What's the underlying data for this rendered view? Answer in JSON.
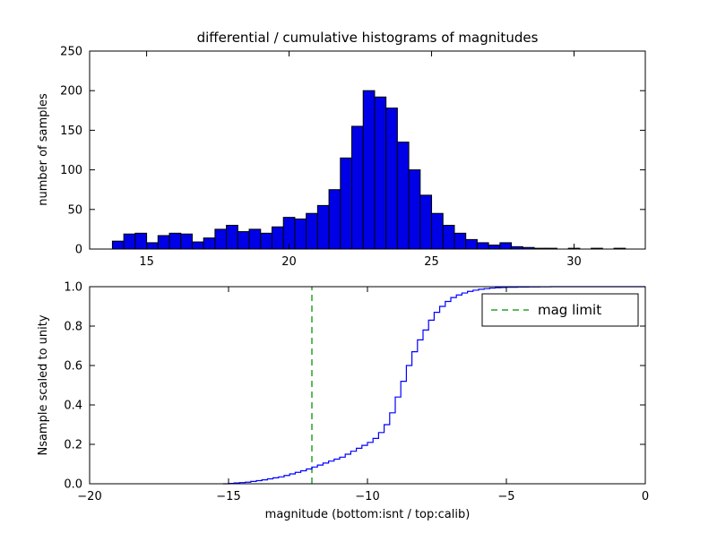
{
  "chart_data": [
    {
      "type": "bar",
      "title": "differential / cumulative histograms of magnitudes",
      "ylabel": "number of samples",
      "xlim": [
        13.0,
        32.5
      ],
      "ylim": [
        0,
        250
      ],
      "xticks": [
        {
          "v": 15,
          "label": "15"
        },
        {
          "v": 20,
          "label": "20"
        },
        {
          "v": 25,
          "label": "25"
        },
        {
          "v": 30,
          "label": "30"
        }
      ],
      "yticks": [
        {
          "v": 0,
          "label": "0"
        },
        {
          "v": 50,
          "label": "50"
        },
        {
          "v": 100,
          "label": "100"
        },
        {
          "v": 150,
          "label": "150"
        },
        {
          "v": 200,
          "label": "200"
        },
        {
          "v": 250,
          "label": "250"
        }
      ],
      "bin_start": 13.8,
      "bin_width": 0.4,
      "values": [
        10,
        19,
        20,
        8,
        17,
        20,
        19,
        9,
        14,
        25,
        30,
        22,
        25,
        20,
        28,
        40,
        38,
        45,
        55,
        75,
        115,
        155,
        200,
        192,
        178,
        135,
        100,
        68,
        45,
        30,
        20,
        12,
        8,
        5,
        8,
        3,
        2,
        1,
        1,
        0,
        1,
        0,
        1,
        0,
        1,
        0
      ],
      "bar_fill": "#0000e6",
      "bar_edge": "#000000",
      "grid": false
    },
    {
      "type": "step-line",
      "ylabel": "Nsample scaled to unity",
      "xlabel": "magnitude (bottom:isnt / top:calib)",
      "xlim": [
        -20,
        0
      ],
      "ylim": [
        0.0,
        1.0
      ],
      "xticks": [
        {
          "v": -20,
          "label": "−20"
        },
        {
          "v": -15,
          "label": "−15"
        },
        {
          "v": -10,
          "label": "−10"
        },
        {
          "v": -5,
          "label": "−5"
        },
        {
          "v": 0,
          "label": "0"
        }
      ],
      "yticks": [
        {
          "v": 0.0,
          "label": "0.0"
        },
        {
          "v": 0.2,
          "label": "0.2"
        },
        {
          "v": 0.4,
          "label": "0.4"
        },
        {
          "v": 0.6,
          "label": "0.6"
        },
        {
          "v": 0.8,
          "label": "0.8"
        },
        {
          "v": 1.0,
          "label": "1.0"
        }
      ],
      "line_color": "#0000ff",
      "x": [
        -15.2,
        -15.0,
        -14.8,
        -14.6,
        -14.4,
        -14.2,
        -14.0,
        -13.8,
        -13.6,
        -13.4,
        -13.2,
        -13.0,
        -12.8,
        -12.6,
        -12.4,
        -12.2,
        -12.0,
        -11.8,
        -11.6,
        -11.4,
        -11.2,
        -11.0,
        -10.8,
        -10.6,
        -10.4,
        -10.2,
        -10.0,
        -9.8,
        -9.6,
        -9.4,
        -9.2,
        -9.0,
        -8.8,
        -8.6,
        -8.4,
        -8.2,
        -8.0,
        -7.8,
        -7.6,
        -7.4,
        -7.2,
        -7.0,
        -6.8,
        -6.6,
        -6.4,
        -6.2,
        -6.0,
        -5.8,
        -5.6,
        -5.4,
        -5.2,
        -5.0,
        -4.6,
        -4.2,
        -3.8,
        -3.4,
        -3.0,
        0.0
      ],
      "y": [
        0.0,
        0.002,
        0.004,
        0.006,
        0.008,
        0.012,
        0.016,
        0.02,
        0.025,
        0.03,
        0.035,
        0.042,
        0.05,
        0.058,
        0.066,
        0.075,
        0.085,
        0.095,
        0.105,
        0.115,
        0.125,
        0.135,
        0.15,
        0.165,
        0.18,
        0.195,
        0.21,
        0.23,
        0.26,
        0.3,
        0.36,
        0.44,
        0.52,
        0.6,
        0.67,
        0.73,
        0.78,
        0.83,
        0.87,
        0.9,
        0.925,
        0.945,
        0.958,
        0.968,
        0.976,
        0.982,
        0.987,
        0.99,
        0.993,
        0.995,
        0.996,
        0.997,
        0.998,
        0.999,
        0.9995,
        1.0,
        1.0,
        1.0
      ],
      "vline": {
        "x": -12,
        "color": "#2ca02c",
        "style": "dashed"
      },
      "legend": {
        "label": "mag limit",
        "position": "upper right"
      },
      "grid": false
    }
  ]
}
